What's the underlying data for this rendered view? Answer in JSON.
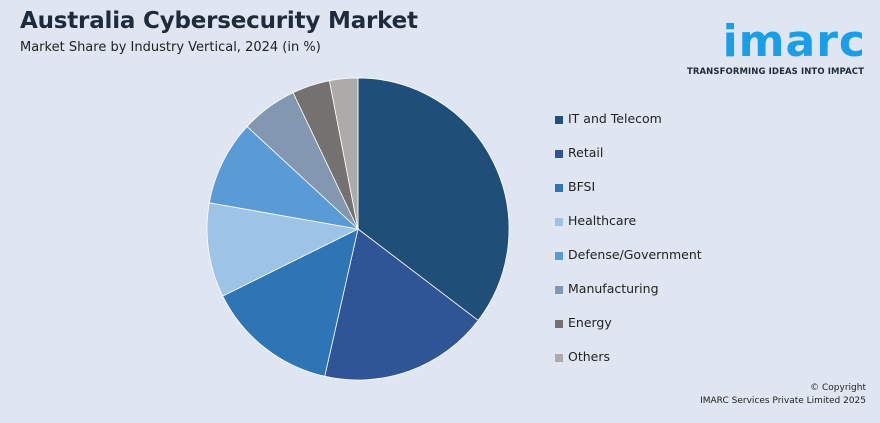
{
  "header": {
    "title": "Australia Cybersecurity Market",
    "subtitle": "Market Share by Industry Vertical, 2024 (in %)"
  },
  "logo": {
    "wordmark": "imarc",
    "tagline": "TRANSFORMING IDEAS INTO IMPACT",
    "color": "#1a9ee8"
  },
  "chart_data": {
    "type": "pie",
    "title": "Market Share by Industry Vertical, 2024 (in %)",
    "legend_position": "right",
    "slices": [
      {
        "label": "IT and Telecom",
        "value": 35,
        "color": "#1f4e79"
      },
      {
        "label": "Retail",
        "value": 18,
        "color": "#2f5597"
      },
      {
        "label": "BFSI",
        "value": 14,
        "color": "#2e75b6"
      },
      {
        "label": "Healthcare",
        "value": 10,
        "color": "#9dc3e6"
      },
      {
        "label": "Defense/Government",
        "value": 9,
        "color": "#5b9bd5"
      },
      {
        "label": "Manufacturing",
        "value": 6,
        "color": "#8497b0"
      },
      {
        "label": "Energy",
        "value": 4,
        "color": "#767171"
      },
      {
        "label": "Others",
        "value": 3,
        "color": "#aeaaaa"
      }
    ]
  },
  "footer": {
    "copyright_line1": "© Copyright",
    "copyright_line2": "IMARC Services Private Limited 2025"
  }
}
